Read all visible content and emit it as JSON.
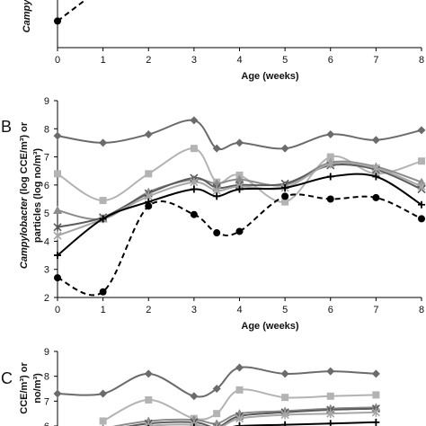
{
  "chart_data": [
    {
      "panel": "A",
      "type": "line",
      "panel_label": "",
      "title": "",
      "xlabel": "Age (weeks)",
      "ylabel": "Campy",
      "xlim": [
        0,
        8
      ],
      "ylim": [
        1.8,
        3.0
      ],
      "xticks": [
        "0",
        "1",
        "2",
        "3",
        "4",
        "5",
        "6",
        "7",
        "8"
      ],
      "yticks": [],
      "series": [
        {
          "color": "#000000",
          "dash": "6,4",
          "marker": "circle",
          "smooth": false,
          "x": [
            0,
            1
          ],
          "y": [
            2.3,
            2.95
          ]
        }
      ]
    },
    {
      "panel": "B",
      "type": "line",
      "panel_label": "B",
      "title": "",
      "xlabel": "Age (weeks)",
      "ylabel_italic": "Campylobacter",
      "ylabel_line1": " (log CCE/m³) or",
      "ylabel_line2": "particles (log no/m³)",
      "xlim": [
        0,
        8
      ],
      "ylim": [
        2,
        9
      ],
      "xticks": [
        "0",
        "1",
        "2",
        "3",
        "4",
        "5",
        "6",
        "7",
        "8"
      ],
      "yticks": [
        "2",
        "3",
        "4",
        "5",
        "6",
        "7",
        "8",
        "9"
      ],
      "series": [
        {
          "color": "#6b6b6b",
          "dash": "",
          "marker": "diamond",
          "smooth": true,
          "x": [
            0,
            1,
            2,
            3,
            3.5,
            4,
            5,
            6,
            7,
            8
          ],
          "y": [
            7.75,
            7.5,
            7.8,
            8.3,
            7.3,
            7.5,
            7.3,
            7.8,
            7.6,
            7.95
          ]
        },
        {
          "color": "#b3b3b3",
          "dash": "",
          "marker": "square",
          "smooth": true,
          "x": [
            0,
            1,
            2,
            3,
            3.5,
            4,
            5,
            6,
            7,
            8
          ],
          "y": [
            6.4,
            5.45,
            6.4,
            7.3,
            6.1,
            6.35,
            5.4,
            7.0,
            6.4,
            6.85
          ]
        },
        {
          "color": "#8c8c8c",
          "dash": "",
          "marker": "triangle",
          "smooth": true,
          "x": [
            0,
            1,
            2,
            3,
            3.5,
            4,
            5,
            6,
            7,
            8
          ],
          "y": [
            5.1,
            4.8,
            5.75,
            6.2,
            6.05,
            6.2,
            6.0,
            6.8,
            6.65,
            6.1
          ]
        },
        {
          "color": "#5a5a5a",
          "dash": "",
          "marker": "x",
          "smooth": true,
          "x": [
            0,
            1,
            2,
            3,
            3.5,
            4,
            5,
            6,
            7,
            8
          ],
          "y": [
            4.5,
            4.85,
            5.7,
            6.25,
            5.9,
            6.0,
            6.05,
            6.7,
            6.55,
            5.85
          ]
        },
        {
          "color": "#a6a6a6",
          "dash": "",
          "marker": "star",
          "smooth": true,
          "x": [
            0,
            1,
            2,
            3,
            3.5,
            4,
            5,
            6,
            7,
            8
          ],
          "y": [
            4.2,
            4.8,
            5.6,
            6.1,
            5.8,
            5.95,
            5.9,
            6.75,
            6.6,
            5.95
          ]
        },
        {
          "color": "#000000",
          "dash": "",
          "marker": "plus",
          "smooth": true,
          "x": [
            0,
            1,
            2,
            3,
            3.5,
            4,
            5,
            6,
            7,
            8
          ],
          "y": [
            3.5,
            4.8,
            5.4,
            5.85,
            5.6,
            5.85,
            5.9,
            6.3,
            6.3,
            5.3
          ]
        },
        {
          "color": "#000000",
          "dash": "6,4",
          "marker": "circle",
          "smooth": true,
          "x": [
            0,
            1,
            2,
            3,
            3.5,
            4,
            5,
            6,
            7,
            8
          ],
          "y": [
            2.7,
            2.2,
            5.25,
            4.95,
            4.3,
            4.35,
            5.6,
            5.5,
            5.55,
            4.8
          ]
        }
      ]
    },
    {
      "panel": "C",
      "type": "line",
      "panel_label": "C",
      "title": "",
      "xlabel": "",
      "ylabel_line1": "CCE/m³) or",
      "ylabel_line2": "no/m³)",
      "xlim": [
        0,
        8
      ],
      "ylim": [
        6,
        9
      ],
      "xticks": [],
      "yticks": [
        "6",
        "7",
        "8",
        "9"
      ],
      "series": [
        {
          "color": "#6b6b6b",
          "dash": "",
          "marker": "diamond",
          "smooth": true,
          "x": [
            0,
            1,
            2,
            3,
            3.5,
            4,
            5,
            6,
            7
          ],
          "y": [
            7.3,
            7.3,
            8.1,
            7.2,
            7.5,
            8.35,
            8.1,
            8.2,
            8.1
          ]
        },
        {
          "color": "#b3b3b3",
          "dash": "",
          "marker": "square",
          "smooth": true,
          "x": [
            1,
            2,
            3,
            3.5,
            4,
            5,
            6,
            7
          ],
          "y": [
            6.2,
            7.05,
            6.3,
            6.5,
            7.45,
            7.15,
            7.2,
            7.25
          ]
        },
        {
          "color": "#8c8c8c",
          "dash": "",
          "marker": "triangle",
          "smooth": true,
          "x": [
            1,
            2,
            3,
            3.5,
            4,
            5,
            6,
            7
          ],
          "y": [
            5.9,
            6.2,
            6.25,
            6.1,
            6.5,
            6.6,
            6.7,
            6.75
          ]
        },
        {
          "color": "#5a5a5a",
          "dash": "",
          "marker": "x",
          "smooth": true,
          "x": [
            1,
            2,
            3,
            3.5,
            4,
            5,
            6,
            7
          ],
          "y": [
            5.8,
            6.1,
            6.15,
            5.95,
            6.4,
            6.55,
            6.65,
            6.7
          ]
        },
        {
          "color": "#a6a6a6",
          "dash": "",
          "marker": "star",
          "smooth": true,
          "x": [
            1,
            2,
            3,
            3.5,
            4,
            5,
            6,
            7
          ],
          "y": [
            5.7,
            6.0,
            6.05,
            5.9,
            6.3,
            6.45,
            6.5,
            6.55
          ]
        },
        {
          "color": "#000000",
          "dash": "",
          "marker": "plus",
          "smooth": true,
          "x": [
            1,
            2,
            3,
            3.5,
            4,
            5,
            6,
            7
          ],
          "y": [
            5.7,
            5.9,
            5.95,
            5.85,
            6.0,
            6.05,
            6.1,
            6.15
          ]
        }
      ]
    }
  ]
}
